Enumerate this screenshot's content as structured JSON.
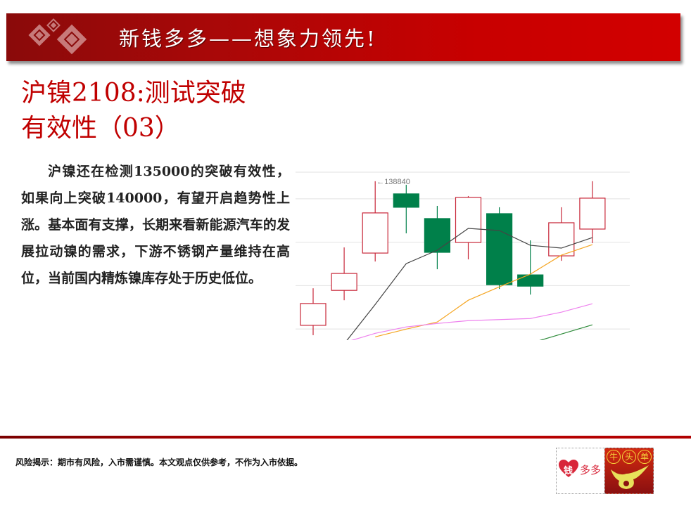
{
  "header": {
    "title": "新钱多多——想象力领先!",
    "logo_icon": "red-lattice-diamond-logo"
  },
  "slide": {
    "title_line1": "沪镍2108:测试突破",
    "title_line2": "有效性（03）",
    "body": "沪镍还在检测135000的突破有效性，如果向上突破140000，有望开启趋势性上涨。基本面有支撑，长期来看新能源汽车的发展拉动镍的需求，下游不锈钢产量维持在高位，当前国内精炼镍库存处于历史低位。"
  },
  "footer": {
    "disclaimer": "风险揭示：期市有风险，入市需谨慎。本文观点仅供参考，不作为入市依据。",
    "logo_left": {
      "heart_char": "钱",
      "text": "多多"
    },
    "logo_right": {
      "chars": [
        "牛",
        "头",
        "单"
      ]
    }
  },
  "colors": {
    "up": "#c8283a",
    "down": "#00804a",
    "ma_black": "#444444",
    "ma_orange": "#f5a623",
    "ma_pink": "#ee82ee",
    "ma_green": "#2e8b3a",
    "accent": "#c00000"
  },
  "chart_data": {
    "type": "candlestick",
    "ylim": [
      113200,
      140300
    ],
    "gridlines": [
      140300,
      136000,
      129000,
      122000,
      115000
    ],
    "grid": true,
    "annotation": {
      "label": "←138840",
      "candle_index": 2,
      "value": 138840
    },
    "candles": [
      {
        "open": 115590,
        "high": 121570,
        "low": 114000,
        "close": 119110
      },
      {
        "open": 121230,
        "high": 128160,
        "low": 119640,
        "close": 123960
      },
      {
        "open": 127250,
        "high": 138840,
        "low": 125890,
        "close": 133730
      },
      {
        "open": 136800,
        "high": 138270,
        "low": 130430,
        "close": 134640
      },
      {
        "open": 132820,
        "high": 134860,
        "low": 124640,
        "close": 127370
      },
      {
        "open": 128960,
        "high": 136450,
        "low": 126230,
        "close": 136230
      },
      {
        "open": 133610,
        "high": 134640,
        "low": 121460,
        "close": 122140
      },
      {
        "open": 123730,
        "high": 129300,
        "low": 120550,
        "close": 121910
      },
      {
        "open": 126800,
        "high": 134640,
        "low": 126000,
        "close": 132140
      },
      {
        "open": 131120,
        "high": 138840,
        "low": 128840,
        "close": 136110
      }
    ],
    "moving_averages": [
      {
        "color": "#444444",
        "values": [
          null,
          112600,
          118960,
          125550,
          127710,
          131230,
          130890,
          128500,
          128050,
          129750
        ]
      },
      {
        "color": "#f5a623",
        "values": [
          null,
          null,
          113730,
          114980,
          116120,
          119640,
          121800,
          123850,
          126910,
          128620
        ]
      },
      {
        "color": "#ee82ee",
        "values": [
          null,
          112800,
          114300,
          115330,
          115890,
          116350,
          116520,
          116690,
          117710,
          119070
        ]
      },
      {
        "color": "#2e8b3a",
        "values": [
          null,
          null,
          null,
          null,
          null,
          null,
          null,
          112700,
          114190,
          115670
        ]
      }
    ]
  }
}
